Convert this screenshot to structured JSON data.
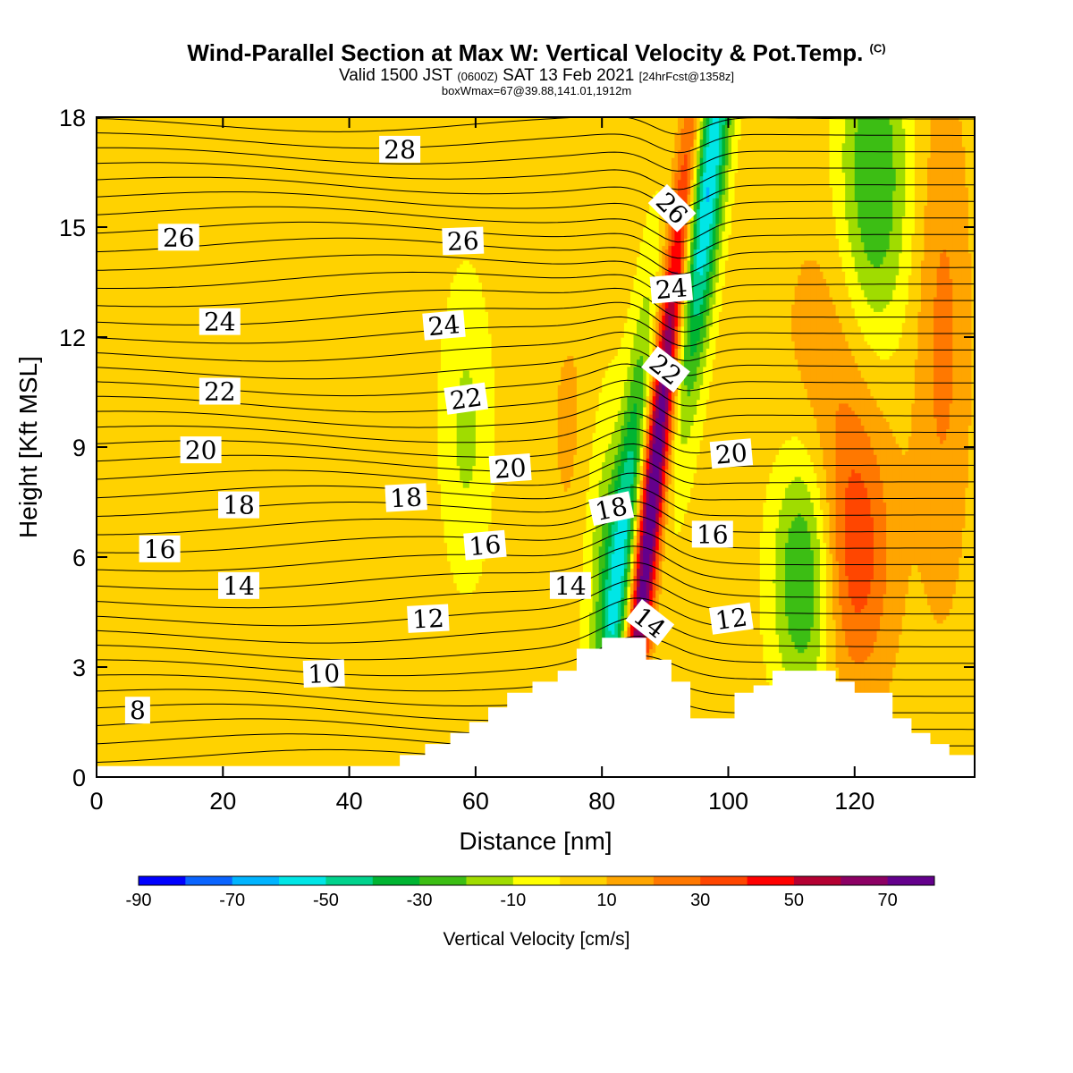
{
  "titles": {
    "main": "Wind-Parallel Section at Max W: Vertical Velocity & Pot.Temp.",
    "copyright": "(C)",
    "valid_prefix": "Valid 1500 JST",
    "valid_utc": "(0600Z)",
    "valid_date": "SAT 13 Feb 2021",
    "forecast": "[24hrFcst@1358z]",
    "box": "boxWmax=67@39.88,141.01,1912m"
  },
  "chart_data": {
    "type": "heatmap",
    "xlabel": "Distance [nm]",
    "ylabel": "Height [Kft MSL]",
    "xlim": [
      0,
      139
    ],
    "ylim": [
      0,
      18
    ],
    "xticks": [
      0,
      20,
      40,
      60,
      80,
      100,
      120
    ],
    "yticks": [
      0,
      3,
      6,
      9,
      12,
      15,
      18
    ],
    "colorbar": {
      "label": "Vertical Velocity [cm/s]",
      "levels": [
        -90,
        -80,
        -70,
        -60,
        -50,
        -40,
        -30,
        -20,
        -10,
        0,
        10,
        20,
        30,
        40,
        50,
        60,
        70,
        80
      ],
      "tick_labels": [
        "-90",
        "-70",
        "-50",
        "-30",
        "-10",
        "10",
        "30",
        "50",
        "70"
      ],
      "colors": [
        "#0000ff",
        "#0a64ff",
        "#00b4ff",
        "#00e6e6",
        "#00d28c",
        "#00b432",
        "#3cbe14",
        "#a0dc00",
        "#ffff00",
        "#ffd200",
        "#ffa500",
        "#ff7800",
        "#ff4600",
        "#ff0000",
        "#b40032",
        "#8c0064",
        "#64008c"
      ]
    },
    "terrain": [
      [
        0,
        0.3
      ],
      [
        48,
        0.3
      ],
      [
        48,
        0.6
      ],
      [
        52,
        0.6
      ],
      [
        52,
        0.9
      ],
      [
        56,
        0.9
      ],
      [
        56,
        1.2
      ],
      [
        59,
        1.2
      ],
      [
        59,
        1.5
      ],
      [
        62,
        1.5
      ],
      [
        62,
        1.9
      ],
      [
        65,
        1.9
      ],
      [
        65,
        2.3
      ],
      [
        69,
        2.3
      ],
      [
        69,
        2.6
      ],
      [
        73,
        2.6
      ],
      [
        73,
        2.9
      ],
      [
        76,
        2.9
      ],
      [
        76,
        3.5
      ],
      [
        80,
        3.5
      ],
      [
        80,
        3.8
      ],
      [
        87,
        3.8
      ],
      [
        87,
        3.2
      ],
      [
        91,
        3.2
      ],
      [
        91,
        2.6
      ],
      [
        94,
        2.6
      ],
      [
        94,
        1.6
      ],
      [
        101,
        1.6
      ],
      [
        101,
        2.3
      ],
      [
        104,
        2.3
      ],
      [
        104,
        2.5
      ],
      [
        107,
        2.5
      ],
      [
        107,
        2.9
      ],
      [
        117,
        2.9
      ],
      [
        117,
        2.6
      ],
      [
        120,
        2.6
      ],
      [
        120,
        2.3
      ],
      [
        126,
        2.3
      ],
      [
        126,
        1.6
      ],
      [
        129,
        1.6
      ],
      [
        129,
        1.2
      ],
      [
        132,
        1.2
      ],
      [
        132,
        0.9
      ],
      [
        135,
        0.9
      ],
      [
        135,
        0.6
      ],
      [
        139,
        0.6
      ]
    ],
    "theta_contour_labels": [
      {
        "text": "8",
        "x": 6.5,
        "y": 1.8,
        "rot": 0
      },
      {
        "text": "10",
        "x": 36,
        "y": 2.8,
        "rot": -2
      },
      {
        "text": "12",
        "x": 52.5,
        "y": 4.3,
        "rot": -3
      },
      {
        "text": "12",
        "x": 100.5,
        "y": 4.3,
        "rot": -8
      },
      {
        "text": "14",
        "x": 22.5,
        "y": 5.2,
        "rot": 0
      },
      {
        "text": "14",
        "x": 75,
        "y": 5.2,
        "rot": 0
      },
      {
        "text": "14",
        "x": 87.5,
        "y": 4.2,
        "rot": 38
      },
      {
        "text": "16",
        "x": 10,
        "y": 6.2,
        "rot": 0
      },
      {
        "text": "16",
        "x": 61.5,
        "y": 6.3,
        "rot": -5
      },
      {
        "text": "16",
        "x": 97.5,
        "y": 6.6,
        "rot": 0
      },
      {
        "text": "18",
        "x": 22.5,
        "y": 7.4,
        "rot": 0
      },
      {
        "text": "18",
        "x": 49,
        "y": 7.6,
        "rot": -3
      },
      {
        "text": "18",
        "x": 81.5,
        "y": 7.3,
        "rot": -12
      },
      {
        "text": "20",
        "x": 16.5,
        "y": 8.9,
        "rot": 0
      },
      {
        "text": "20",
        "x": 65.5,
        "y": 8.4,
        "rot": -4
      },
      {
        "text": "20",
        "x": 100.5,
        "y": 8.8,
        "rot": -5
      },
      {
        "text": "22",
        "x": 19.5,
        "y": 10.5,
        "rot": 0
      },
      {
        "text": "22",
        "x": 58.5,
        "y": 10.3,
        "rot": -8
      },
      {
        "text": "22",
        "x": 90,
        "y": 11.1,
        "rot": 38
      },
      {
        "text": "24",
        "x": 19.5,
        "y": 12.4,
        "rot": 0
      },
      {
        "text": "24",
        "x": 55,
        "y": 12.3,
        "rot": -5
      },
      {
        "text": "24",
        "x": 91,
        "y": 13.3,
        "rot": -5
      },
      {
        "text": "26",
        "x": 13,
        "y": 14.7,
        "rot": 0
      },
      {
        "text": "26",
        "x": 58,
        "y": 14.6,
        "rot": -2
      },
      {
        "text": "26",
        "x": 91,
        "y": 15.5,
        "rot": 45
      },
      {
        "text": "28",
        "x": 48,
        "y": 17.1,
        "rot": 0
      }
    ]
  }
}
